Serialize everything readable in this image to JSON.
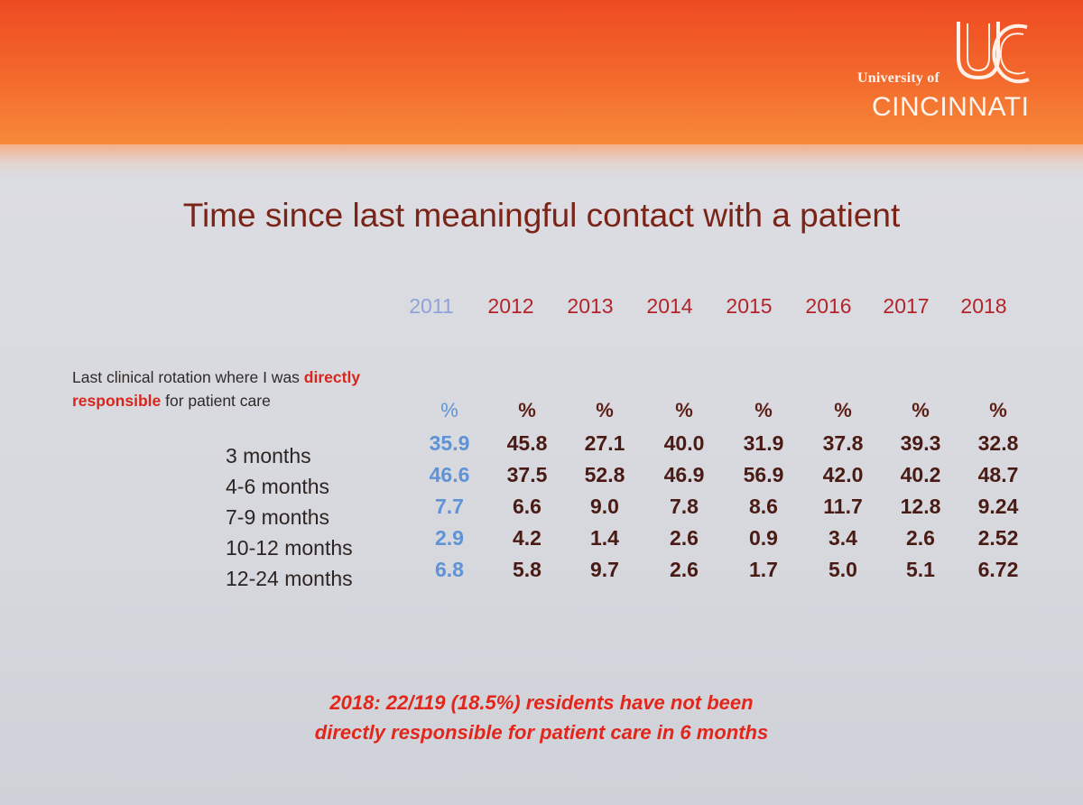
{
  "logo": {
    "university_of": "University of",
    "name": "CINCINNATI",
    "mark_icon": "uc-monogram-icon"
  },
  "title": "Time since last meaningful contact with a patient",
  "description": {
    "part1": "Last clinical rotation where I was ",
    "bold": "directly responsible",
    "part2": " for patient care"
  },
  "table": {
    "years": [
      "2011",
      "2012",
      "2013",
      "2014",
      "2015",
      "2016",
      "2017",
      "2018"
    ],
    "unit": "%",
    "rows": [
      {
        "label": "3 months",
        "values": [
          "35.9",
          "45.8",
          "27.1",
          "40.0",
          "31.9",
          "37.8",
          "39.3",
          "32.8"
        ]
      },
      {
        "label": "4-6 months",
        "values": [
          "46.6",
          "37.5",
          "52.8",
          "46.9",
          "56.9",
          "42.0",
          "40.2",
          "48.7"
        ]
      },
      {
        "label": "7-9 months",
        "values": [
          "7.7",
          "6.6",
          "9.0",
          "7.8",
          "8.6",
          "11.7",
          "12.8",
          "9.24"
        ]
      },
      {
        "label": "10-12 months",
        "values": [
          "2.9",
          "4.2",
          "1.4",
          "2.6",
          "0.9",
          "3.4",
          "2.6",
          "2.52"
        ]
      },
      {
        "label": "12-24 months",
        "values": [
          "6.8",
          "5.8",
          "9.7",
          "2.6",
          "1.7",
          "5.0",
          "5.1",
          "6.72"
        ]
      }
    ]
  },
  "note": {
    "line1": "2018:  22/119 (18.5%) residents have not been",
    "line2": "directly responsible for patient care in 6 months"
  },
  "colors": {
    "header": "#ee4a22",
    "title": "#7a2418",
    "year_header": "#b3242a",
    "year_2011": "#8fa3d8",
    "values_2011": "#5f93d6",
    "values": "#4a1b14",
    "note": "#e3261b"
  }
}
